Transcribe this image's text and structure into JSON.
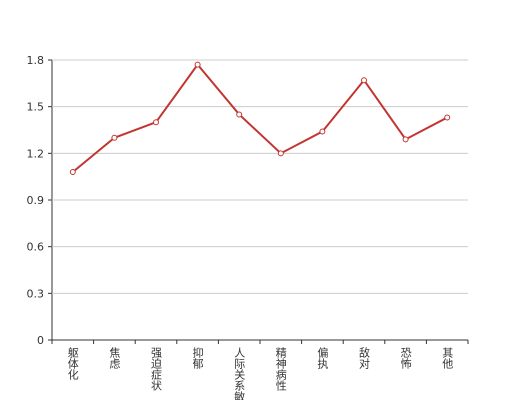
{
  "chart_data": {
    "type": "line",
    "categories": [
      "躯体化",
      "焦虑",
      "强迫症状",
      "抑郁",
      "人际关系敏感",
      "精神病性",
      "偏执",
      "敌对",
      "恐怖",
      "其他"
    ],
    "values": [
      1.08,
      1.3,
      1.4,
      1.77,
      1.45,
      1.2,
      1.34,
      1.67,
      1.29,
      1.43
    ],
    "color": "#c23531",
    "ylim": [
      0,
      1.8
    ],
    "yticks": [
      0,
      0.3,
      0.6,
      0.9,
      1.2,
      1.5,
      1.8
    ],
    "grid": true
  }
}
